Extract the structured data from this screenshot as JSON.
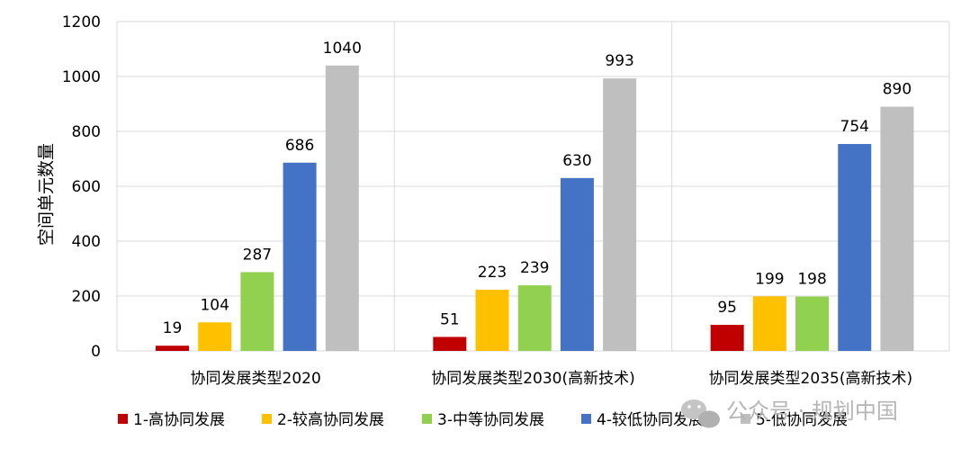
{
  "chart_data": {
    "type": "bar",
    "ylabel": "空间单元数量",
    "ylim": [
      0,
      1200
    ],
    "yticks": [
      0,
      200,
      400,
      600,
      800,
      1000,
      1200
    ],
    "grid": true,
    "legend_position": "bottom",
    "categories": [
      "协同发展类型2020",
      "协同发展类型2030(高新技术)",
      "协同发展类型2035(高新技术)"
    ],
    "series": [
      {
        "name": "1-高协同发展",
        "color": "#c00000",
        "values": [
          19,
          51,
          95
        ]
      },
      {
        "name": "2-较高协同发展",
        "color": "#ffc000",
        "values": [
          104,
          223,
          199
        ]
      },
      {
        "name": "3-中等协同发展",
        "color": "#92d050",
        "values": [
          287,
          239,
          198
        ]
      },
      {
        "name": "4-较低协同发展",
        "color": "#4472c4",
        "values": [
          686,
          630,
          754
        ]
      },
      {
        "name": "5-低协同发展",
        "color": "#bfbfbf",
        "values": [
          1040,
          993,
          890
        ]
      }
    ]
  },
  "watermark": {
    "text": "公众号 · 规划中国"
  }
}
